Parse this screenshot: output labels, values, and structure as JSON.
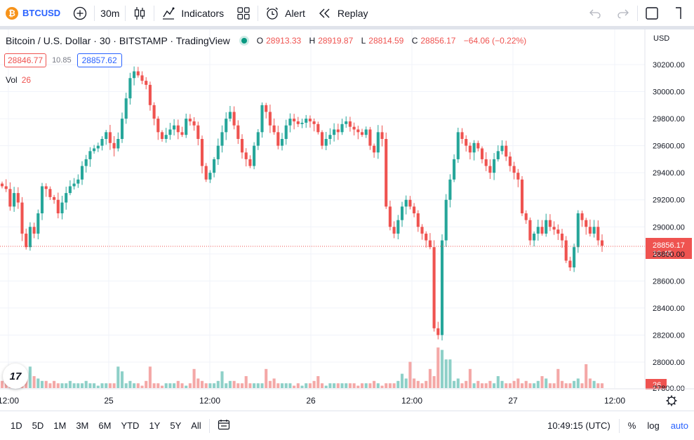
{
  "toolbar": {
    "symbol": "BTCUSD",
    "symbol_badge": "₿",
    "interval": "30m",
    "indicators_label": "Indicators",
    "alert_label": "Alert",
    "replay_label": "Replay"
  },
  "legend": {
    "title": "Bitcoin / U.S. Dollar · 30 · BITSTAMP · TradingView",
    "o_key": "O",
    "o_val": "28913.33",
    "h_key": "H",
    "h_val": "28919.87",
    "l_key": "L",
    "l_val": "28814.59",
    "c_key": "C",
    "c_val": "28856.17",
    "change": "−64.06 (−0.22%)",
    "bid": "28846.77",
    "spread": "10.85",
    "ask": "28857.62",
    "vol_label": "Vol",
    "vol_value": "26",
    "logo": "17"
  },
  "price_axis": {
    "currency": "USD",
    "last_price": "28856.17",
    "countdown": "10:45",
    "vol_badge": "26"
  },
  "time_axis": {
    "labels": [
      "12:00",
      "25",
      "12:00",
      "26",
      "12:00",
      "27",
      "12:00"
    ]
  },
  "bottombar": {
    "ranges": [
      "1D",
      "5D",
      "1M",
      "3M",
      "6M",
      "YTD",
      "1Y",
      "5Y",
      "All"
    ],
    "clock": "10:49:15 (UTC)",
    "percent": "%",
    "log": "log",
    "auto": "auto"
  },
  "colors": {
    "up": "#26a69a",
    "down": "#ef5350",
    "vol_up": "#8ed0c8",
    "vol_down": "#f4a8a7",
    "grid": "#f0f3fa",
    "accent": "#2962ff",
    "bitcoin": "#f7931a"
  },
  "chart_data": {
    "type": "candlestick",
    "title": "Bitcoin / U.S. Dollar · 30 · BITSTAMP · TradingView",
    "y_ticks": [
      28000,
      28200,
      28400,
      28600,
      28800,
      29000,
      29200,
      29400,
      29600,
      29800,
      30000,
      30200
    ],
    "ylim": [
      27950,
      30300
    ],
    "last_price": 28856.17,
    "x_labels": [
      "12:00",
      "25",
      "12:00",
      "26",
      "12:00",
      "27",
      "12:00"
    ],
    "grid": true,
    "close_trace": [
      29300,
      29280,
      29150,
      29250,
      29180,
      28950,
      28850,
      29000,
      28950,
      29100,
      29300,
      29280,
      29220,
      29200,
      29100,
      29180,
      29250,
      29300,
      29320,
      29350,
      29450,
      29500,
      29560,
      29580,
      29600,
      29650,
      29700,
      29620,
      29580,
      29650,
      29800,
      29950,
      30100,
      30150,
      30120,
      30080,
      30050,
      29900,
      29800,
      29700,
      29650,
      29680,
      29720,
      29750,
      29700,
      29680,
      29800,
      29780,
      29750,
      29650,
      29450,
      29350,
      29400,
      29500,
      29600,
      29700,
      29800,
      29850,
      29750,
      29650,
      29550,
      29500,
      29450,
      29600,
      29700,
      29900,
      29850,
      29750,
      29700,
      29600,
      29650,
      29750,
      29800,
      29780,
      29760,
      29770,
      29800,
      29780,
      29760,
      29700,
      29600,
      29650,
      29680,
      29720,
      29700,
      29760,
      29780,
      29740,
      29720,
      29700,
      29680,
      29720,
      29600,
      29550,
      29700,
      29650,
      29150,
      29000,
      28950,
      29050,
      29150,
      29200,
      29150,
      29100,
      29000,
      28950,
      28900,
      28850,
      28250,
      28200,
      28900,
      29200,
      29350,
      29500,
      29700,
      29650,
      29600,
      29550,
      29620,
      29580,
      29500,
      29450,
      29400,
      29500,
      29560,
      29600,
      29520,
      29450,
      29400,
      29350,
      29100,
      29050,
      28900,
      28950,
      29000,
      28950,
      29050,
      29000,
      28980,
      28950,
      28900,
      28750,
      28700,
      28850,
      29100,
      29050,
      29000,
      28950,
      29000,
      28900,
      28860
    ],
    "volume": [
      3,
      4,
      6,
      5,
      3,
      2,
      4,
      9,
      5,
      4,
      3,
      3,
      2,
      3,
      2,
      2,
      2,
      3,
      2,
      2,
      2,
      3,
      2,
      2,
      1,
      2,
      2,
      2,
      2,
      9,
      7,
      2,
      3,
      2,
      2,
      1,
      3,
      9,
      2,
      2,
      1,
      2,
      2,
      2,
      3,
      2,
      1,
      2,
      8,
      4,
      3,
      2,
      2,
      2,
      3,
      7,
      2,
      3,
      3,
      2,
      2,
      5,
      2,
      2,
      2,
      2,
      8,
      3,
      4,
      2,
      2,
      2,
      2,
      1,
      2,
      1,
      2,
      2,
      3,
      5,
      2,
      1,
      2,
      2,
      2,
      2,
      2,
      2,
      2,
      1,
      2,
      2,
      2,
      3,
      2,
      1,
      2,
      2,
      2,
      3,
      6,
      4,
      11,
      4,
      3,
      2,
      3,
      8,
      5,
      17,
      16,
      12,
      12,
      3,
      4,
      2,
      3,
      8,
      2,
      3,
      2,
      2,
      3,
      2,
      5,
      3,
      2,
      2,
      3,
      4,
      2,
      3,
      2,
      2,
      3,
      5,
      4,
      2,
      2,
      8,
      3,
      2,
      2,
      3,
      4,
      2,
      10,
      4,
      3,
      2,
      2
    ]
  }
}
